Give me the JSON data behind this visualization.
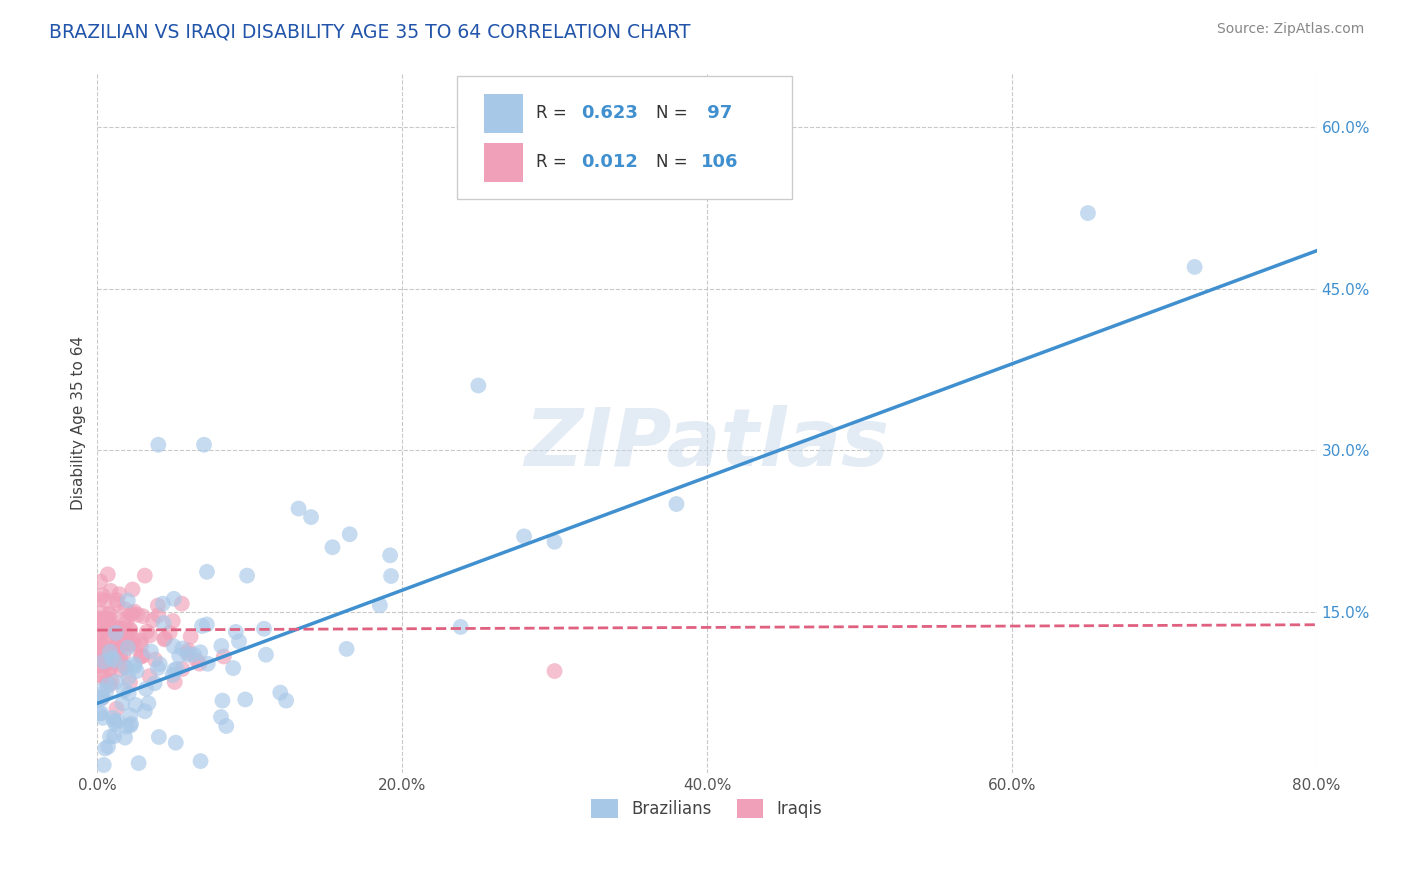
{
  "title": "BRAZILIAN VS IRAQI DISABILITY AGE 35 TO 64 CORRELATION CHART",
  "source": "Source: ZipAtlas.com",
  "ylabel": "Disability Age 35 to 64",
  "xlim": [
    0.0,
    0.8
  ],
  "ylim": [
    0.0,
    0.65
  ],
  "xticks": [
    0.0,
    0.2,
    0.4,
    0.6,
    0.8
  ],
  "xticklabels": [
    "0.0%",
    "20.0%",
    "40.0%",
    "60.0%",
    "80.0%"
  ],
  "yticks": [
    0.15,
    0.3,
    0.45,
    0.6
  ],
  "yticklabels": [
    "15.0%",
    "30.0%",
    "45.0%",
    "60.0%"
  ],
  "color_blue": "#A8C8E8",
  "color_pink": "#F0A0B8",
  "color_blue_line": "#4090D0",
  "color_pink_line": "#E06080",
  "title_color": "#2255AA",
  "watermark": "ZIPatlas",
  "background_color": "#FFFFFF",
  "grid_color": "#BBBBBB",
  "seed": 42,
  "brazilian_n": 97,
  "iraqi_n": 106,
  "blue_line_x": [
    0.0,
    0.8
  ],
  "blue_line_y": [
    0.065,
    0.485
  ],
  "pink_line_x": [
    0.0,
    0.8
  ],
  "pink_line_y": [
    0.133,
    0.138
  ]
}
